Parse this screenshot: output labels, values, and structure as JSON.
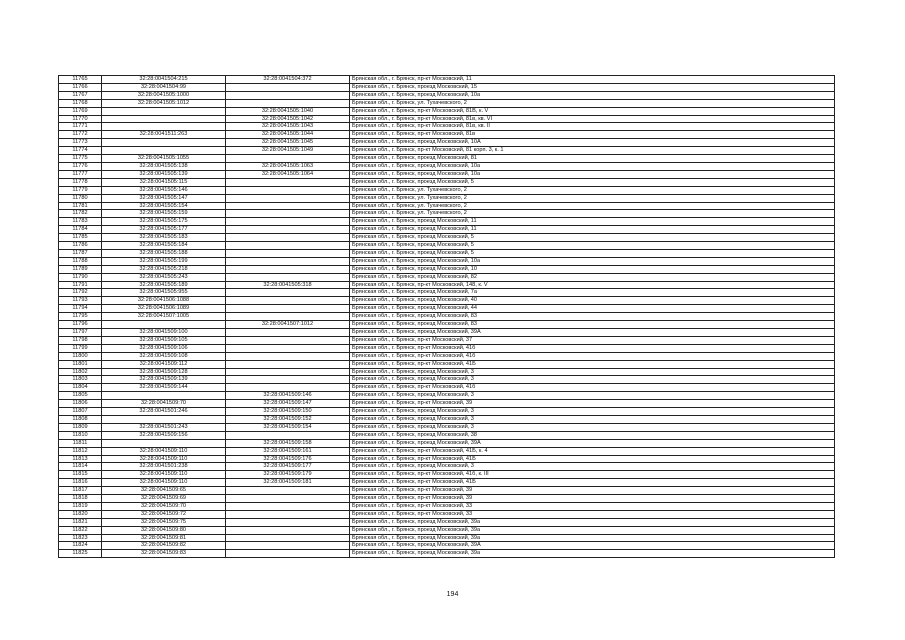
{
  "address_prefix": "Брянская обл., г. Брянск, ",
  "rows": [
    [
      "11765",
      "32:28:0041504:215",
      "32:28:0041504:372",
      "пр-кт Московский, 11"
    ],
    [
      "11766",
      "32:28:0041504:99",
      "",
      "проезд Московский, 15"
    ],
    [
      "11767",
      "32:28:0041505:1000",
      "",
      "проезд Московский, 10а"
    ],
    [
      "11768",
      "32:28:0041505:1012",
      "",
      "ул. Тухачевского, 2"
    ],
    [
      "11769",
      "",
      "32:28:0041505:1040",
      "пр-кт Московский, 81В, к. V"
    ],
    [
      "11770",
      "",
      "32:28:0041505:1042",
      "пр-кт Московский, 81в, кв. VI"
    ],
    [
      "11771",
      "",
      "32:28:0041505:1043",
      "пр-кт Московский, 81в, кв. II"
    ],
    [
      "11772",
      "32:28:0041511:263",
      "32:28:0041505:1044",
      "пр-кт Московский, 81в"
    ],
    [
      "11773",
      "",
      "32:28:0041505:1045",
      "проезд Московский, 10А"
    ],
    [
      "11774",
      "",
      "32:28:0041505:1049",
      "пр-кт Московский, 81 корп. 3, к. 1"
    ],
    [
      "11775",
      "32:28:0041505:1055",
      "",
      "проезд Московский, 81"
    ],
    [
      "11776",
      "32:28:0041505:138",
      "32:28:0041505:1063",
      "проезд Московский, 10а"
    ],
    [
      "11777",
      "32:28:0041505:139",
      "32:28:0041505:1064",
      "проезд Московский, 10а"
    ],
    [
      "11778",
      "32:28:0041505:115",
      "",
      "проезд Московский, 5"
    ],
    [
      "11779",
      "32:28:0041505:146",
      "",
      "ул. Тухачевского, 2"
    ],
    [
      "11780",
      "32:28:0041505:147",
      "",
      "ул. Тухачевского, 2"
    ],
    [
      "11781",
      "32:28:0041505:154",
      "",
      "ул. Тухачевского, 2"
    ],
    [
      "11782",
      "32:28:0041505:159",
      "",
      "ул. Тухачевского, 2"
    ],
    [
      "11783",
      "32:28:0041505:175",
      "",
      "проезд Московский, 11"
    ],
    [
      "11784",
      "32:28:0041505:177",
      "",
      "проезд Московский, 11"
    ],
    [
      "11785",
      "32:28:0041505:183",
      "",
      "проезд Московский, 5"
    ],
    [
      "11786",
      "32:28:0041505:184",
      "",
      "проезд Московский, 5"
    ],
    [
      "11787",
      "32:28:0041505:188",
      "",
      "проезд Московский, 5"
    ],
    [
      "11788",
      "32:28:0041505:199",
      "",
      "проезд Московский, 10а"
    ],
    [
      "11789",
      "32:28:0041505:218",
      "",
      "проезд Московский, 10"
    ],
    [
      "11790",
      "32:28:0041505:243",
      "",
      "проезд Московский, 82"
    ],
    [
      "11791",
      "32:28:0041505:189",
      "32:28:0041505:318",
      "пр-кт Московский, 148, к. V"
    ],
    [
      "11792",
      "32:28:0041505:955",
      "",
      "проезд Московский, 7а"
    ],
    [
      "11793",
      "32:28:0041506:1088",
      "",
      "проезд Московский, 40"
    ],
    [
      "11794",
      "32:28:0041506:1089",
      "",
      "проезд Московский, 44"
    ],
    [
      "11795",
      "32:28:0041507:1005",
      "",
      "проезд Московский, 83"
    ],
    [
      "11796",
      "",
      "32:28:0041507:1012",
      "проезд Московский, 83"
    ],
    [
      "11797",
      "32:28:0041509:100",
      "",
      "проезд Московский, 39А"
    ],
    [
      "11798",
      "32:28:0041509:105",
      "",
      "пр-кт Московский, 37"
    ],
    [
      "11799",
      "32:28:0041509:106",
      "",
      "пр-кт Московский, 41б"
    ],
    [
      "11800",
      "32:28:0041509:108",
      "",
      "пр-кт Московский, 41б"
    ],
    [
      "11801",
      "32:28:0041509:112",
      "",
      "пр-кт Московский, 41Б"
    ],
    [
      "11802",
      "32:28:0041509:128",
      "",
      "проезд Московский, 3"
    ],
    [
      "11803",
      "32:28:0041509:139",
      "",
      "проезд Московский, 3"
    ],
    [
      "11804",
      "32:28:0041509:144",
      "",
      "пр-кт Московский, 41б"
    ],
    [
      "11805",
      "",
      "32:28:0041509:146",
      "проезд Московский, 3"
    ],
    [
      "11806",
      "32:28:0041509:70",
      "32:28:0041509:147",
      "пр-кт Московский, 39"
    ],
    [
      "11807",
      "32:28:0041501:246",
      "32:28:0041509:150",
      "проезд Московский, 3"
    ],
    [
      "11808",
      "",
      "32:28:0041509:152",
      "проезд Московский, 3"
    ],
    [
      "11809",
      "32:28:0041501:243",
      "32:28:0041509:154",
      "проезд Московский, 3"
    ],
    [
      "11810",
      "32:28:0041509:156",
      "",
      "проезд Московский, 38"
    ],
    [
      "11811",
      "",
      "32:28:0041509:158",
      "проезд Московский, 39А"
    ],
    [
      "11812",
      "32:28:0041509:110",
      "32:28:0041509:161",
      "пр-кт Московский, 41Б, к. 4"
    ],
    [
      "11813",
      "32:28:0041509:110",
      "32:28:0041509:176",
      "пр-кт Московский, 41Б"
    ],
    [
      "11814",
      "32:28:0041501:238",
      "32:28:0041509:177",
      "проезд Московский, 3"
    ],
    [
      "11815",
      "32:28:0041509:110",
      "32:28:0041509:179",
      "пр-кт Московский, 41б, к. III"
    ],
    [
      "11816",
      "32:28:0041509:110",
      "32:28:0041509:181",
      "пр-кт Московский, 41Б"
    ],
    [
      "11817",
      "32:28:0041509:65",
      "",
      "пр-кт Московский, 39"
    ],
    [
      "11818",
      "32:28:0041509:69",
      "",
      "пр-кт Московский, 39"
    ],
    [
      "11819",
      "32:28:0041509:70",
      "",
      "пр-кт Московский, 33"
    ],
    [
      "11820",
      "32:28:0041509:72",
      "",
      "пр-кт Московский, 33"
    ],
    [
      "11821",
      "32:28:0041509:75",
      "",
      "проезд Московский, 39а"
    ],
    [
      "11822",
      "32:28:0041509:80",
      "",
      "проезд Московский, 39а"
    ],
    [
      "11823",
      "32:28:0041509:81",
      "",
      "проезд Московский, 39а"
    ],
    [
      "11824",
      "32:28:0041509:82",
      "",
      "проезд Московский, 39А"
    ],
    [
      "11825",
      "32:28:0041509:83",
      "",
      "проезд Московский, 39а"
    ]
  ],
  "page_number": "194"
}
